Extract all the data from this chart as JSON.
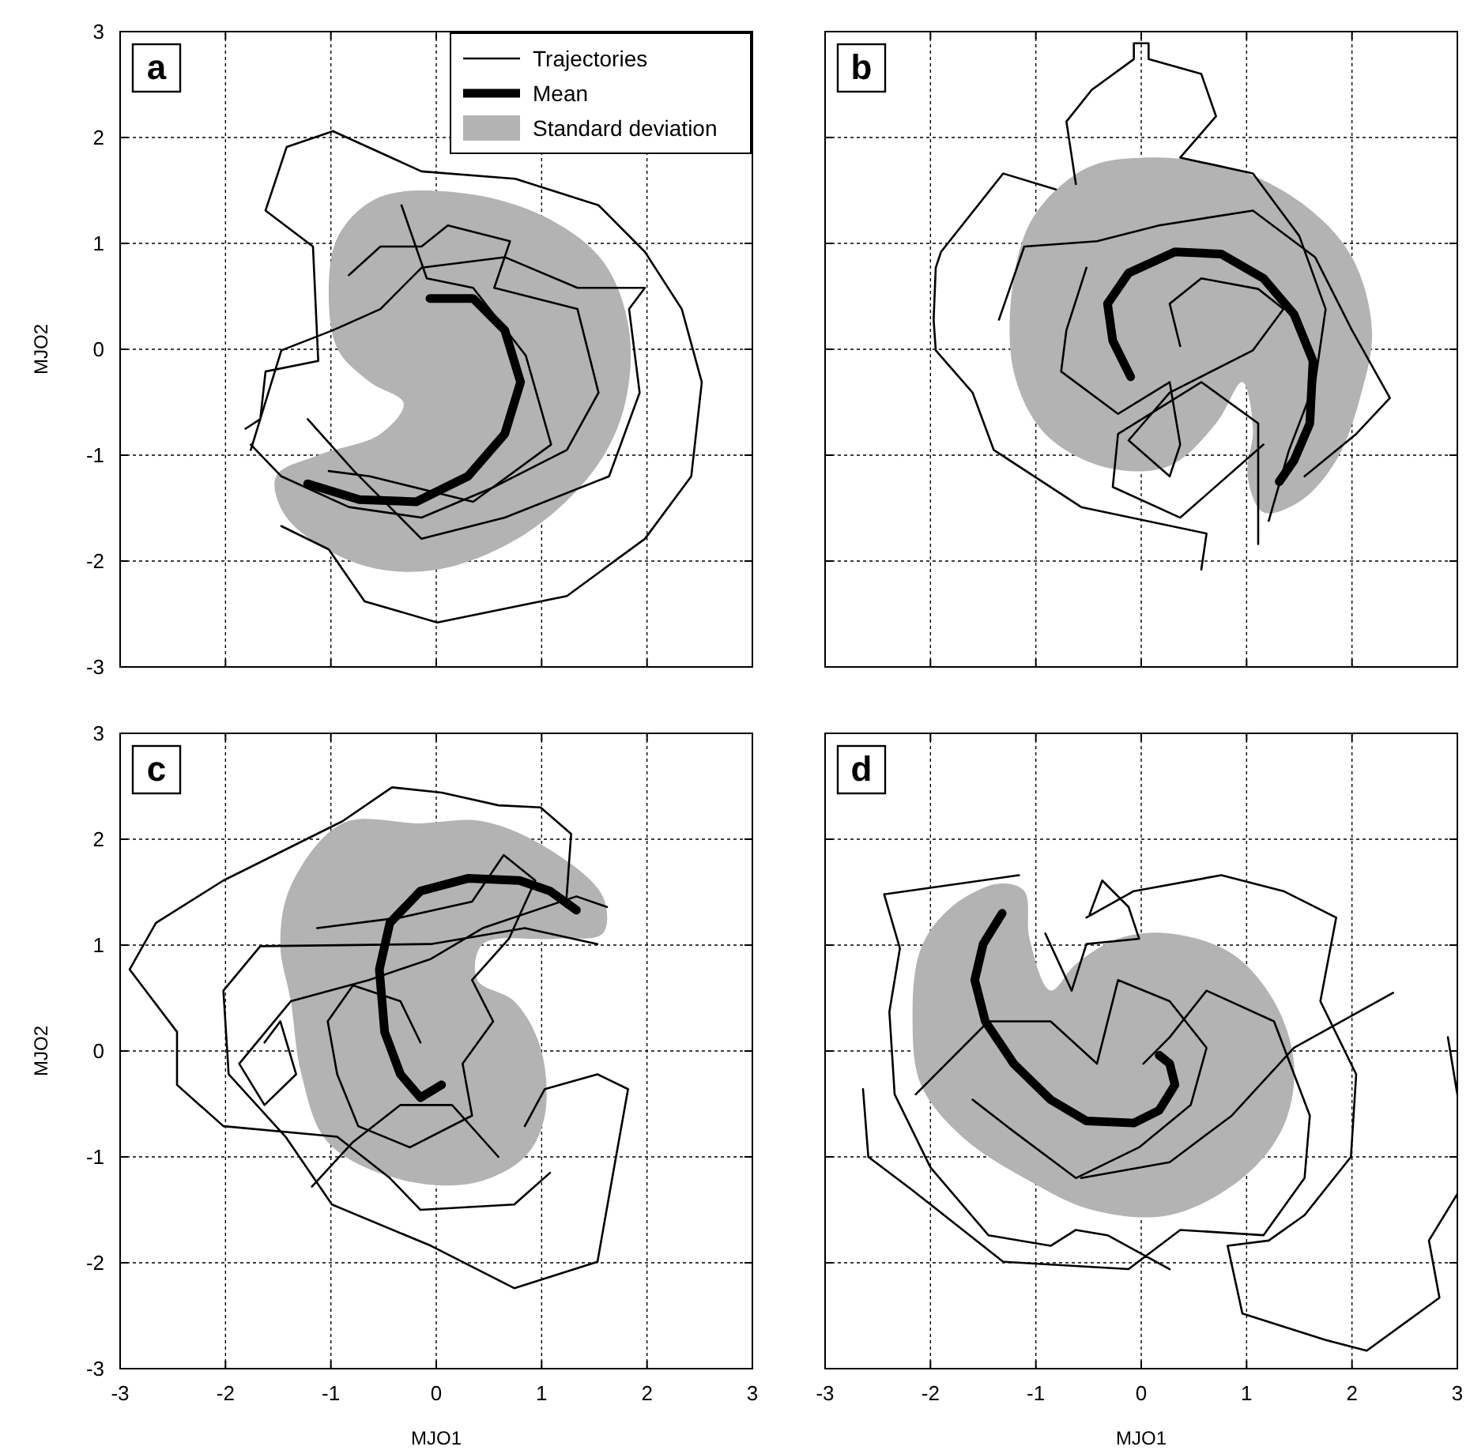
{
  "chart_data": [
    {
      "type": "line",
      "title": "a",
      "ylabel": "MJO2",
      "xlim": [
        -3,
        3
      ],
      "ylim": [
        -3,
        3
      ],
      "xticks": [
        -3,
        -2,
        -1,
        0,
        1,
        2,
        3
      ],
      "yticks": [
        -3,
        -2,
        -1,
        0,
        1,
        2,
        3
      ],
      "grid": true,
      "legend": "top right",
      "tick_labels": "y",
      "line_style": "solid",
      "series": [
        {
          "name": "Standard deviation",
          "type": "area",
          "color": "#b3b3b3",
          "x": [
            -0.53,
            0.35,
            1.09,
            1.59,
            1.83,
            1.78,
            1.49,
            0.85,
            0.01,
            -0.73,
            -1.42,
            -1.52,
            -1.12,
            -0.53,
            -0.31,
            -0.63,
            -0.93,
            -1.02,
            -0.93
          ],
          "values": [
            1.44,
            1.46,
            1.22,
            0.82,
            0.18,
            -0.56,
            -1.15,
            -1.74,
            -2.08,
            -2.03,
            -1.59,
            -1.2,
            -1.0,
            -0.8,
            -0.51,
            -0.31,
            -0.01,
            0.48,
            1.07
          ]
        },
        {
          "name": "Trajectories",
          "color": "#000000",
          "x": [
            -0.98,
            -0.14,
            0.75,
            1.54,
            1.98,
            2.33,
            2.52,
            2.42,
            1.98,
            1.24,
            0.01,
            -0.68,
            -1.02,
            -1.47,
            null,
            -0.98,
            -1.42,
            -1.62,
            -1.17,
            -1.12,
            -1.62,
            -1.67,
            -1.81,
            null,
            -0.83,
            -0.53,
            -0.14,
            0.11,
            0.7,
            0.55,
            1.34,
            1.54,
            1.24,
            0.55,
            -0.14,
            -0.83,
            -1.47,
            -1.76,
            null,
            -1.22,
            -0.78,
            -0.14,
            0.65,
            1.64,
            1.93,
            1.83,
            1.98,
            1.34,
            0.65,
            -0.14,
            -0.53,
            -0.98,
            -1.47,
            -1.76,
            null,
            -0.33,
            -0.09,
            0.35,
            0.85,
            1.09,
            0.35,
            -0.63,
            -1.02
          ],
          "values": [
            2.06,
            1.68,
            1.61,
            1.36,
            0.92,
            0.38,
            -0.31,
            -1.2,
            -1.79,
            -2.33,
            -2.58,
            -2.38,
            -1.89,
            -1.67,
            null,
            2.06,
            1.91,
            1.31,
            0.97,
            -0.11,
            -0.21,
            -0.66,
            -0.75,
            null,
            0.7,
            0.97,
            0.97,
            1.17,
            1.02,
            0.58,
            0.38,
            -0.41,
            -0.95,
            -1.3,
            -1.59,
            -1.49,
            -1.2,
            -0.9,
            null,
            -0.66,
            -1.15,
            -1.79,
            -1.59,
            -1.2,
            -0.41,
            0.38,
            0.58,
            0.58,
            0.87,
            0.77,
            0.38,
            0.18,
            -0.01,
            -0.95,
            null,
            1.36,
            0.67,
            0.58,
            -0.06,
            -0.9,
            -1.44,
            -1.2,
            -1.15
          ]
        },
        {
          "name": "Mean",
          "color": "#000000",
          "x": [
            -0.06,
            0.35,
            0.65,
            0.8,
            0.65,
            0.3,
            -0.19,
            -0.73,
            -1.22
          ],
          "values": [
            0.48,
            0.48,
            0.18,
            -0.31,
            -0.8,
            -1.2,
            -1.44,
            -1.42,
            -1.27
          ]
        }
      ]
    },
    {
      "type": "line",
      "title": "b",
      "xlim": [
        -3,
        3
      ],
      "ylim": [
        -3,
        3
      ],
      "xticks": [
        -3,
        -2,
        -1,
        0,
        1,
        2,
        3
      ],
      "yticks": [
        -3,
        -2,
        -1,
        0,
        1,
        2,
        3
      ],
      "grid": true,
      "tick_labels": false,
      "line_style": "solid",
      "series": [
        {
          "type": "area",
          "color": "#b3b3b3",
          "x": [
            0.02,
            0.86,
            1.55,
            2.0,
            2.19,
            2.09,
            1.85,
            1.5,
            1.16,
            1.01,
            1.06,
            0.96,
            0.71,
            0.27,
            -0.32,
            -0.91,
            -1.21,
            -1.21,
            -1.01,
            -0.52
          ],
          "values": [
            1.81,
            1.71,
            1.36,
            0.87,
            0.18,
            -0.41,
            -1.05,
            -1.44,
            -1.54,
            -1.2,
            -0.75,
            -0.31,
            -0.7,
            -1.1,
            -1.12,
            -0.8,
            -0.21,
            0.67,
            1.27,
            1.71
          ]
        },
        {
          "color": "#000000",
          "x": [
            -0.62,
            -0.71,
            -0.47,
            -0.07,
            -0.07,
            0.07,
            0.07,
            0.57,
            0.71,
            0.37,
            1.06,
            1.5,
            1.75,
            1.65,
            1.4,
            1.21,
            null,
            -0.81,
            -1.31,
            -1.9,
            -1.95,
            -1.97,
            -1.95,
            -1.6,
            -1.4,
            -0.57,
            0.62,
            0.57,
            null,
            -1.35,
            -1.11,
            -0.42,
            0.17,
            1.06,
            1.65,
            2.0,
            2.36,
            2.04,
            1.55,
            null,
            -0.52,
            -0.71,
            -0.76,
            -0.22,
            0.27,
            0.37,
            0.27,
            -0.12,
            0.27,
            1.06,
            1.35,
            1.11,
            0.57,
            0.27,
            0.37,
            null,
            1.11,
            1.11,
            0.57,
            -0.22,
            -0.27,
            0.37,
            1.16
          ],
          "values": [
            1.56,
            2.15,
            2.45,
            2.74,
            2.89,
            2.89,
            2.74,
            2.6,
            2.2,
            1.81,
            1.66,
            1.07,
            0.38,
            -0.31,
            -0.96,
            -1.62,
            null,
            1.51,
            1.66,
            0.92,
            0.77,
            0.28,
            -0.01,
            -0.41,
            -0.95,
            -1.49,
            -1.74,
            -2.08,
            null,
            0.28,
            0.97,
            1.02,
            1.17,
            1.31,
            0.87,
            0.18,
            -0.46,
            -0.8,
            -1.2,
            null,
            0.77,
            0.18,
            -0.21,
            -0.61,
            -0.31,
            -0.9,
            -1.2,
            -0.86,
            -0.41,
            -0.01,
            0.38,
            0.57,
            0.67,
            0.43,
            0.03,
            null,
            -1.84,
            -0.7,
            -0.31,
            -0.8,
            -1.3,
            -1.59,
            -0.9
          ]
        },
        {
          "color": "#000000",
          "x": [
            -0.1,
            -0.27,
            -0.32,
            -0.12,
            0.32,
            0.76,
            1.16,
            1.45,
            1.63,
            1.6,
            1.45,
            1.31
          ],
          "values": [
            -0.26,
            0.08,
            0.43,
            0.72,
            0.92,
            0.9,
            0.67,
            0.33,
            -0.11,
            -0.7,
            -1.05,
            -1.25
          ]
        }
      ]
    },
    {
      "type": "line",
      "title": "c",
      "xlabel": "MJO1",
      "ylabel": "MJO2",
      "xlim": [
        -3,
        3
      ],
      "ylim": [
        -3,
        3
      ],
      "xticks": [
        -3,
        -2,
        -1,
        0,
        1,
        2,
        3
      ],
      "yticks": [
        -3,
        -2,
        -1,
        0,
        1,
        2,
        3
      ],
      "grid": true,
      "line_style": "solid",
      "series": [
        {
          "type": "area",
          "color": "#b3b3b3",
          "x": [
            -0.89,
            -0.15,
            0.44,
            1.08,
            1.58,
            1.58,
            1.13,
            0.44,
            0.39,
            0.74,
            0.99,
            1.03,
            0.84,
            0.34,
            -0.39,
            -1.03,
            -1.28,
            -1.38,
            -1.48,
            -1.38
          ],
          "values": [
            2.15,
            2.15,
            2.17,
            1.9,
            1.46,
            1.11,
            1.06,
            1.01,
            0.67,
            0.47,
            0.03,
            -0.61,
            -1.0,
            -1.25,
            -1.2,
            -0.86,
            -0.22,
            0.47,
            1.01,
            1.56
          ]
        },
        {
          "color": "#000000",
          "x": [
            1.53,
            0.84,
            -0.05,
            -1.67,
            -2.02,
            -1.97,
            -1.43,
            -0.99,
            -0.05,
            0.74,
            1.53,
            1.67,
            1.82,
            1.53,
            1.03,
            0.84,
            null,
            1.23,
            1.28,
            0.99,
            0.59,
            0.05,
            -0.42,
            -0.89,
            -2.02,
            -2.66,
            -2.91,
            -2.46,
            -2.46,
            -2.02,
            -0.94,
            -0.44,
            -0.15,
            0.74,
            1.08,
            null,
            -1.13,
            -0.34,
            0.34,
            0.64,
            0.94,
            0.69,
            0.34,
            0.54,
            0.25,
            0.34,
            -0.25,
            -0.74,
            -0.94,
            -1.03,
            -0.79,
            -0.34,
            -0.15,
            null,
            -1.63,
            -1.48,
            -1.33,
            -1.63,
            -1.87,
            -1.38,
            -0.64,
            -0.05,
            0.44,
            1.33,
            1.62,
            null,
            -1.18,
            -0.79,
            -0.34,
            0.15,
            0.59
          ],
          "values": [
            1.01,
            1.16,
            1.01,
            0.99,
            0.57,
            -0.22,
            -0.81,
            -1.45,
            -1.84,
            -2.24,
            -1.99,
            -1.2,
            -0.36,
            -0.22,
            -0.36,
            -0.71,
            null,
            1.36,
            2.05,
            2.3,
            2.32,
            2.44,
            2.49,
            2.17,
            1.61,
            1.21,
            0.77,
            0.18,
            -0.32,
            -0.71,
            -0.81,
            -1.2,
            -1.5,
            -1.45,
            -1.15,
            null,
            1.16,
            1.26,
            1.41,
            1.85,
            1.61,
            1.06,
            0.67,
            0.28,
            -0.12,
            -0.61,
            -0.91,
            -0.71,
            -0.22,
            0.28,
            0.62,
            0.47,
            0.08,
            null,
            0.08,
            0.28,
            -0.22,
            -0.51,
            -0.12,
            0.47,
            0.67,
            0.87,
            1.16,
            1.46,
            1.36,
            null,
            -1.28,
            -0.86,
            -0.51,
            -0.51,
            -1.0
          ]
        },
        {
          "color": "#000000",
          "x": [
            0.05,
            -0.15,
            -0.34,
            -0.49,
            -0.54,
            -0.44,
            -0.15,
            0.3,
            0.79,
            1.08,
            1.33
          ],
          "values": [
            -0.32,
            -0.44,
            -0.22,
            0.18,
            0.77,
            1.21,
            1.51,
            1.63,
            1.61,
            1.51,
            1.33
          ]
        }
      ]
    },
    {
      "type": "line",
      "title": "d",
      "xlabel": "MJO1",
      "xlim": [
        -3,
        3
      ],
      "ylim": [
        -3,
        3
      ],
      "xticks": [
        -3,
        -2,
        -1,
        0,
        1,
        2,
        3
      ],
      "yticks": [
        -3,
        -2,
        -1,
        0,
        1,
        2,
        3
      ],
      "grid": true,
      "tick_labels": "x",
      "line_style": "solid",
      "series": [
        {
          "type": "area",
          "color": "#b3b3b3",
          "x": [
            -1.35,
            -1.11,
            -1.06,
            -0.86,
            -0.62,
            -0.22,
            0.27,
            0.86,
            1.26,
            1.45,
            1.35,
            0.96,
            0.27,
            -0.47,
            -1.11,
            -1.7,
            -2.09,
            -2.17,
            -2.09,
            -1.8
          ],
          "values": [
            1.58,
            1.51,
            1.06,
            0.57,
            0.82,
            1.06,
            1.11,
            0.92,
            0.47,
            -0.12,
            -0.71,
            -1.2,
            -1.55,
            -1.5,
            -1.2,
            -0.81,
            -0.32,
            0.28,
            0.97,
            1.36
          ]
        },
        {
          "color": "#000000",
          "x": [
            -1.16,
            -2.44,
            -2.29,
            -2.39,
            -2.34,
            -2.0,
            -1.45,
            -0.86,
            -0.62,
            -0.32,
            0.27,
            null,
            -0.52,
            -0.07,
            0.76,
            1.35,
            1.85,
            1.7,
            2.04,
            1.99,
            1.55,
            1.21,
            0.82,
            0.96,
            1.75,
            2.14,
            2.83,
            2.73,
            3.0,
            null,
            2.91,
            3.0,
            null,
            -2.64,
            -2.59,
            -2.19,
            -1.31,
            -0.12,
            0.37,
            1.16,
            1.55,
            1.6,
            1.26,
            0.62,
            0.27,
            0.02,
            null,
            -2.14,
            -1.45,
            -0.86,
            -0.42,
            -0.22,
            0.27,
            0.62,
            0.47,
            -0.02,
            -0.62,
            -1.21,
            -1.6,
            null,
            2.39,
            1.45,
            0.86,
            0.27,
            -0.57,
            null,
            -0.49,
            -0.37,
            -0.12,
            -0.02,
            -0.52,
            -0.66,
            -0.91
          ],
          "values": [
            1.66,
            1.48,
            0.97,
            0.37,
            -0.41,
            -1.1,
            -1.74,
            -1.84,
            -1.69,
            -1.74,
            -2.06,
            null,
            1.26,
            1.51,
            1.66,
            1.51,
            1.26,
            0.47,
            -0.22,
            -1.0,
            -1.55,
            -1.79,
            -1.84,
            -2.48,
            -2.73,
            -2.83,
            -2.33,
            -1.79,
            -1.35,
            null,
            0.13,
            -0.41,
            null,
            -0.36,
            -1.0,
            -1.3,
            -1.99,
            -2.06,
            -1.69,
            -1.74,
            -1.2,
            -0.61,
            0.28,
            0.57,
            0.13,
            -0.12,
            null,
            -0.41,
            0.28,
            0.28,
            -0.12,
            0.67,
            0.47,
            0.03,
            -0.51,
            -0.91,
            -1.2,
            -0.76,
            -0.46,
            null,
            0.55,
            0.03,
            -0.61,
            -1.05,
            -1.2,
            null,
            1.29,
            1.61,
            1.36,
            1.06,
            1.01,
            0.57,
            1.11
          ]
        },
        {
          "color": "#000000",
          "x": [
            -1.32,
            -1.5,
            -1.58,
            -1.48,
            -1.21,
            -0.86,
            -0.52,
            -0.07,
            0.17,
            0.32,
            0.27,
            0.17
          ],
          "values": [
            1.3,
            1.01,
            0.67,
            0.28,
            -0.12,
            -0.46,
            -0.66,
            -0.68,
            -0.56,
            -0.32,
            -0.12,
            -0.04
          ]
        }
      ]
    }
  ]
}
